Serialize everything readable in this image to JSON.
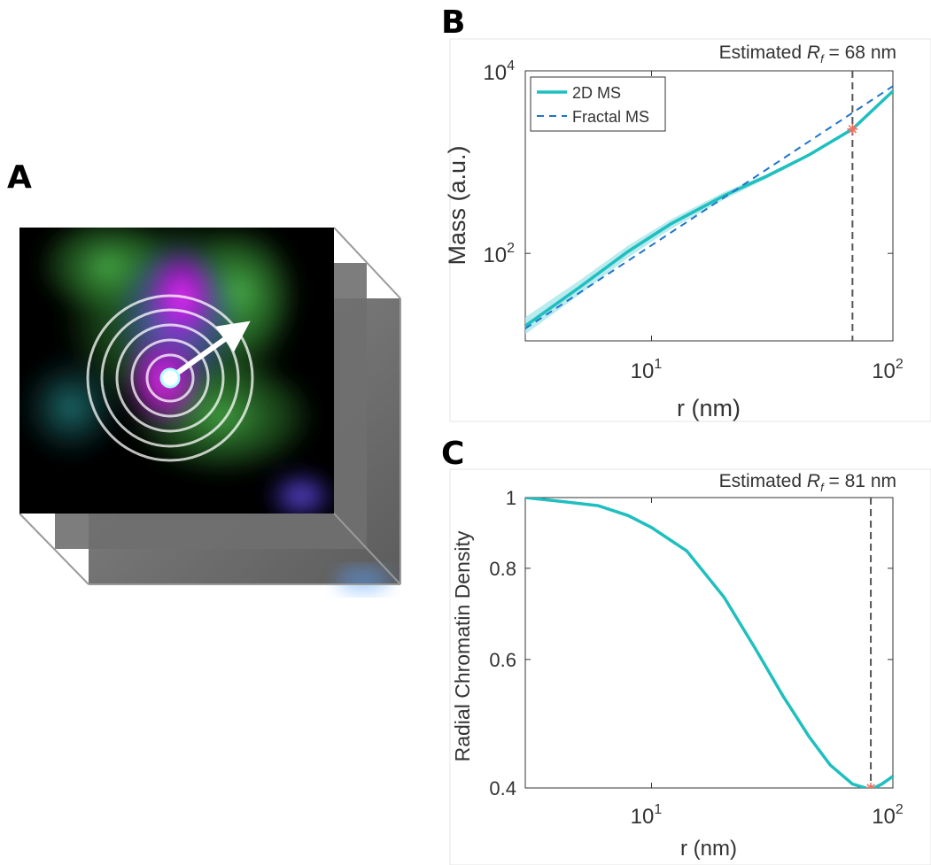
{
  "panels": {
    "a": "A",
    "b": "B",
    "c": "C"
  },
  "colors": {
    "ms_2d": "#1fbfbf",
    "ms_2d_band": "#a9e6ea",
    "fractal": "#1f74c9",
    "marker": "#f07060",
    "vline": "#555555"
  },
  "chart_data": [
    {
      "type": "line",
      "panel": "B",
      "annotation": {
        "prefix": "Estimated ",
        "symbol": "R",
        "subscript": "f",
        "suffix": " = 68 nm"
      },
      "xlabel": "r (nm)",
      "ylabel": "Mass (a.u.)",
      "xscale": "log",
      "yscale": "log",
      "xlim": [
        3,
        100
      ],
      "ylim": [
        11,
        10000
      ],
      "x_ticks": [
        {
          "value": 10,
          "base": "10",
          "exp": "1"
        },
        {
          "value": 100,
          "base": "10",
          "exp": "2"
        }
      ],
      "y_ticks": [
        {
          "value": 100,
          "base": "10",
          "exp": "2"
        },
        {
          "value": 10000,
          "base": "10",
          "exp": "4"
        }
      ],
      "legend": {
        "position": "top-left",
        "entries": [
          "2D MS",
          "Fractal MS"
        ]
      },
      "series": [
        {
          "name": "2D MS",
          "style": "solid",
          "x": [
            3,
            5,
            8,
            12,
            20,
            30,
            45,
            68,
            100
          ],
          "y": [
            16,
            42,
            105,
            210,
            430,
            700,
            1200,
            2300,
            6000
          ],
          "band_lower": [
            13,
            35,
            90,
            185,
            390,
            660,
            1150,
            2230,
            5900
          ],
          "band_upper": [
            20,
            50,
            122,
            235,
            470,
            740,
            1250,
            2370,
            6100
          ]
        },
        {
          "name": "Fractal MS",
          "style": "dashed",
          "x": [
            3,
            100
          ],
          "y": [
            15,
            6800
          ]
        }
      ],
      "vline_x": 68,
      "marker": {
        "x": 68,
        "y": 2300
      },
      "grid": false
    },
    {
      "type": "line",
      "panel": "C",
      "annotation": {
        "prefix": "Estimated ",
        "symbol": "R",
        "subscript": "f",
        "suffix": " = 81 nm"
      },
      "xlabel": "r (nm)",
      "ylabel": "Radial Chromatin Density",
      "xscale": "log",
      "yscale": "log",
      "xlim": [
        3,
        100
      ],
      "ylim": [
        0.4,
        1
      ],
      "x_ticks": [
        {
          "value": 10,
          "base": "10",
          "exp": "1"
        },
        {
          "value": 100,
          "base": "10",
          "exp": "2"
        }
      ],
      "y_ticks": [
        {
          "value": 0.4,
          "label": "0.4"
        },
        {
          "value": 0.6,
          "label": "0.6"
        },
        {
          "value": 0.8,
          "label": "0.8"
        },
        {
          "value": 1,
          "label": "1"
        }
      ],
      "series": [
        {
          "name": "",
          "style": "solid",
          "x": [
            3,
            4,
            6,
            8,
            10,
            14,
            20,
            27,
            35,
            45,
            55,
            68,
            81,
            90,
            100
          ],
          "y": [
            1.0,
            0.99,
            0.975,
            0.945,
            0.91,
            0.845,
            0.73,
            0.62,
            0.535,
            0.47,
            0.43,
            0.405,
            0.398,
            0.405,
            0.415
          ]
        }
      ],
      "vline_x": 81,
      "marker": {
        "x": 81,
        "y": 0.4
      },
      "grid": false
    }
  ]
}
